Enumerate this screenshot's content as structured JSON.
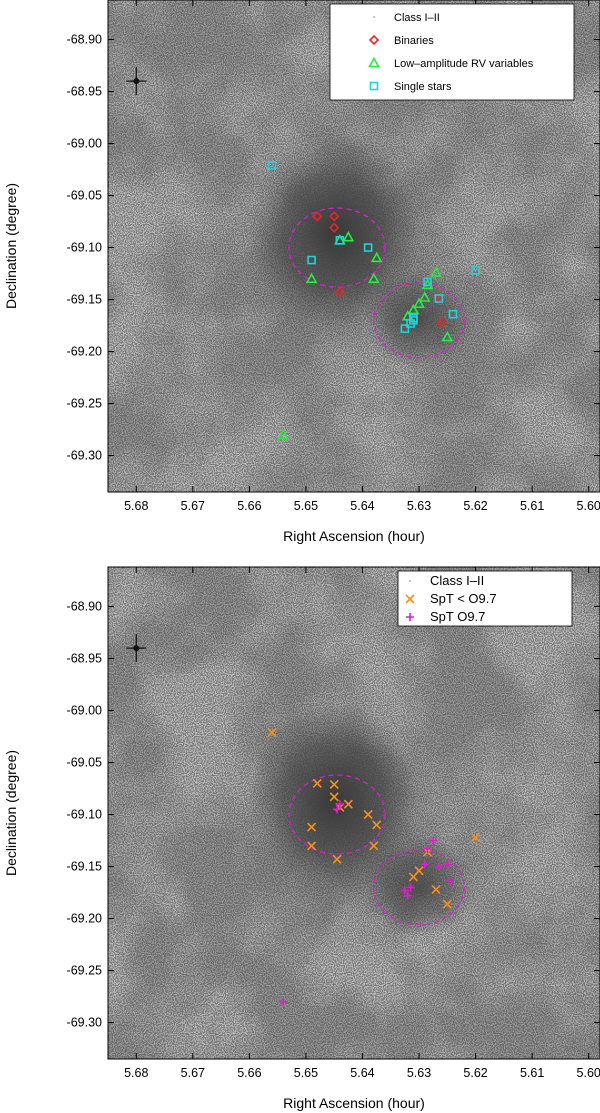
{
  "chart_data": [
    {
      "type": "scatter",
      "xlabel": "Right Ascension (hour)",
      "ylabel": "Declination (degree)",
      "xlim": [
        5.685,
        5.598
      ],
      "ylim": [
        -69.335,
        -68.862
      ],
      "xticks": [
        "5.68",
        "5.67",
        "5.66",
        "5.65",
        "5.64",
        "5.63",
        "5.62",
        "5.61",
        "5.60"
      ],
      "xtick_values": [
        5.68,
        5.67,
        5.66,
        5.65,
        5.64,
        5.63,
        5.62,
        5.61,
        5.6
      ],
      "yticks": [
        "-68.90",
        "-68.95",
        "-69.00",
        "-69.05",
        "-69.10",
        "-69.15",
        "-69.20",
        "-69.25",
        "-69.30"
      ],
      "ytick_values": [
        -68.9,
        -68.95,
        -69.0,
        -69.05,
        -69.1,
        -69.15,
        -69.2,
        -69.25,
        -69.3
      ],
      "legend_position": "top-right",
      "legend": [
        "Class I–II",
        "Binaries",
        "Low–amplitude RV variables",
        "Single stars"
      ],
      "circles": [
        {
          "x": 5.6445,
          "y": -69.1,
          "rx_hours": 0.0085,
          "ry_deg": 0.038
        },
        {
          "x": 5.63,
          "y": -69.17,
          "rx_hours": 0.008,
          "ry_deg": 0.036
        }
      ],
      "series": [
        {
          "name": "Binaries",
          "marker": "diamond",
          "color": "#e8262a",
          "points": [
            [
              5.648,
              -69.07
            ],
            [
              5.645,
              -69.07
            ],
            [
              5.645,
              -69.081
            ],
            [
              5.644,
              -69.143
            ],
            [
              5.6265,
              -69.15
            ],
            [
              5.626,
              -69.172
            ]
          ]
        },
        {
          "name": "Low–amplitude RV variables",
          "marker": "triangle",
          "color": "#22ee44",
          "points": [
            [
              5.644,
              -69.093
            ],
            [
              5.6425,
              -69.09
            ],
            [
              5.649,
              -69.13
            ],
            [
              5.6375,
              -69.11
            ],
            [
              5.638,
              -69.13
            ],
            [
              5.627,
              -69.124
            ],
            [
              5.6285,
              -69.136
            ],
            [
              5.629,
              -69.148
            ],
            [
              5.63,
              -69.154
            ],
            [
              5.631,
              -69.16
            ],
            [
              5.632,
              -69.166
            ],
            [
              5.625,
              -69.186
            ],
            [
              5.654,
              -69.28
            ]
          ]
        },
        {
          "name": "Single stars",
          "marker": "square",
          "color": "#1fd3dc",
          "points": [
            [
              5.656,
              -69.021
            ],
            [
              5.644,
              -69.093
            ],
            [
              5.649,
              -69.112
            ],
            [
              5.639,
              -69.1
            ],
            [
              5.6285,
              -69.133
            ],
            [
              5.6265,
              -69.149
            ],
            [
              5.62,
              -69.122
            ],
            [
              5.624,
              -69.164
            ],
            [
              5.631,
              -69.168
            ],
            [
              5.6315,
              -69.173
            ],
            [
              5.6325,
              -69.178
            ],
            [
              5.631,
              -69.17
            ]
          ]
        }
      ]
    },
    {
      "type": "scatter",
      "xlabel": "Right Ascension (hour)",
      "ylabel": "Declination (degree)",
      "xlim": [
        5.685,
        5.598
      ],
      "ylim": [
        -69.335,
        -68.862
      ],
      "xticks": [
        "5.68",
        "5.67",
        "5.66",
        "5.65",
        "5.64",
        "5.63",
        "5.62",
        "5.61",
        "5.60"
      ],
      "xtick_values": [
        5.68,
        5.67,
        5.66,
        5.65,
        5.64,
        5.63,
        5.62,
        5.61,
        5.6
      ],
      "yticks": [
        "-68.90",
        "-68.95",
        "-69.00",
        "-69.05",
        "-69.10",
        "-69.15",
        "-69.20",
        "-69.25",
        "-69.30"
      ],
      "ytick_values": [
        -68.9,
        -68.95,
        -69.0,
        -69.05,
        -69.1,
        -69.15,
        -69.2,
        -69.25,
        -69.3
      ],
      "legend_position": "top-right",
      "legend": [
        "Class I–II",
        "SpT < O9.7",
        "SpT O9.7"
      ],
      "circles": [
        {
          "x": 5.6445,
          "y": -69.1,
          "rx_hours": 0.0085,
          "ry_deg": 0.038
        },
        {
          "x": 5.63,
          "y": -69.17,
          "rx_hours": 0.008,
          "ry_deg": 0.036
        }
      ],
      "series": [
        {
          "name": "SpT < O9.7",
          "marker": "x",
          "color": "#f5921e",
          "points": [
            [
              5.656,
              -69.021
            ],
            [
              5.648,
              -69.07
            ],
            [
              5.645,
              -69.071
            ],
            [
              5.645,
              -69.083
            ],
            [
              5.644,
              -69.093
            ],
            [
              5.6425,
              -69.09
            ],
            [
              5.649,
              -69.112
            ],
            [
              5.649,
              -69.13
            ],
            [
              5.6445,
              -69.143
            ],
            [
              5.639,
              -69.1
            ],
            [
              5.6375,
              -69.11
            ],
            [
              5.638,
              -69.13
            ],
            [
              5.6285,
              -69.136
            ],
            [
              5.63,
              -69.154
            ],
            [
              5.631,
              -69.16
            ],
            [
              5.627,
              -69.172
            ],
            [
              5.625,
              -69.186
            ],
            [
              5.62,
              -69.122
            ]
          ]
        },
        {
          "name": "SpT O9.7",
          "marker": "plus",
          "color": "#e01bd6",
          "points": [
            [
              5.6445,
              -69.095
            ],
            [
              5.644,
              -69.09
            ],
            [
              5.6275,
              -69.125
            ],
            [
              5.6285,
              -69.133
            ],
            [
              5.629,
              -69.148
            ],
            [
              5.6265,
              -69.15
            ],
            [
              5.625,
              -69.148
            ],
            [
              5.6245,
              -69.164
            ],
            [
              5.6315,
              -69.17
            ],
            [
              5.6325,
              -69.173
            ],
            [
              5.632,
              -69.178
            ],
            [
              5.654,
              -69.28
            ]
          ]
        }
      ]
    }
  ]
}
